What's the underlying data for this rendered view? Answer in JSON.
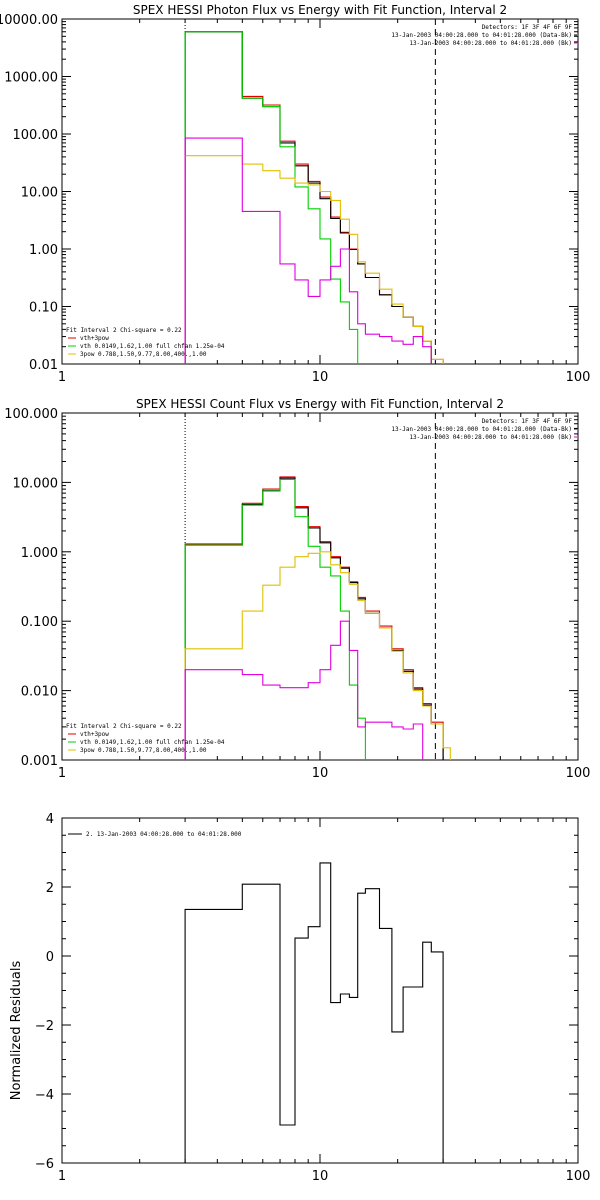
{
  "chart_data": [
    {
      "type": "line",
      "title": "SPEX HESSI Photon Flux vs Energy with Fit Function, Interval 2",
      "xlabel": "",
      "ylabel": "",
      "x_scale": "log",
      "y_scale": "log",
      "xlim": [
        1,
        100
      ],
      "ylim": [
        0.01,
        10000
      ],
      "x_ticks": [
        "1",
        "10",
        "100"
      ],
      "y_ticks": [
        "0.01",
        "0.10",
        "1.00",
        "10.00",
        "100.00",
        "1000.00",
        "10000.00"
      ],
      "top_right_text": [
        "Detectors: 1F 3F 4F 6F 9F",
        "13-Jan-2003 04:00:28.000 to 04:01:28.000 (Data-Bk)",
        "13-Jan-2003 04:00:28.000 to 04:01:28.000 (Bk)"
      ],
      "fit_text": [
        "Fit Interval  2    Chi-square = 0.22",
        "vth+3pow",
        "vth 0.0149,1.62,1.00  full chfan 1.25e-04",
        "3pow 0.788,1.50,9.77,8.00,400.,1.00"
      ],
      "bin_edges": [
        3,
        4,
        5,
        6,
        7,
        8,
        9,
        10,
        11,
        12,
        13,
        14,
        15,
        17,
        19,
        21,
        23,
        25,
        27,
        30,
        32
      ],
      "series": [
        {
          "name": "vth+3pow",
          "color": "#e00000",
          "values": [
            6000,
            6000,
            450,
            320,
            75,
            30,
            15,
            8,
            3.6,
            1.95,
            1.0,
            0.55,
            0.32,
            0.16,
            0.1,
            0.065,
            0.045,
            0.025,
            0.012
          ]
        },
        {
          "name": "",
          "color": "#000000",
          "values": [
            6000,
            6000,
            420,
            300,
            70,
            28,
            14,
            7.5,
            3.4,
            1.9,
            0.98,
            0.55,
            0.32,
            0.16,
            0.1,
            0.065,
            0.045,
            0.025
          ]
        },
        {
          "name": "vth 0.0149,1.62,1.00  full chfan 1.25e-04",
          "color": "#00d000",
          "values": [
            6000,
            6000,
            420,
            300,
            60,
            12,
            5,
            1.5,
            0.3,
            0.12,
            0.04,
            0.009,
            0.003
          ]
        },
        {
          "name": "3pow 0.788,1.50,9.77,8.00,400.,1.00",
          "color": "#e0c000",
          "values": [
            42,
            42,
            30,
            23,
            17,
            14,
            13,
            10,
            7,
            3.3,
            1.8,
            0.6,
            0.38,
            0.2,
            0.11,
            0.065,
            0.045,
            0.025,
            0.012
          ]
        },
        {
          "name": "",
          "color": "#e000e0",
          "values": [
            85,
            85,
            4.5,
            4.5,
            0.55,
            0.29,
            0.15,
            0.29,
            0.5,
            1.0,
            0.18,
            0.05,
            0.033,
            0.03,
            0.025,
            0.022,
            0.03,
            0.02
          ]
        }
      ],
      "vertical_lines": [
        {
          "x": 3,
          "style": "dotted"
        },
        {
          "x": 28,
          "style": "dashed"
        }
      ]
    },
    {
      "type": "line",
      "title": "SPEX HESSI Count Flux vs Energy with Fit Function, Interval 2",
      "xlabel": "",
      "ylabel": "",
      "x_scale": "log",
      "y_scale": "log",
      "xlim": [
        1,
        100
      ],
      "ylim": [
        0.001,
        100
      ],
      "x_ticks": [
        "1",
        "10",
        "100"
      ],
      "y_ticks": [
        "0.001",
        "0.010",
        "0.100",
        "1.000",
        "10.000",
        "100.000"
      ],
      "top_right_text": [
        "Detectors: 1F 3F 4F 6F 9F",
        "13-Jan-2003 04:00:28.000 to 04:01:28.000 (Data-Bk)",
        "13-Jan-2003 04:00:28.000 to 04:01:28.000 (Bk)"
      ],
      "fit_text": [
        "Fit Interval  2    Chi-square = 0.22",
        "vth+3pow",
        "vth 0.0149,1.62,1.00  full chfan 1.25e-04",
        "3pow 0.788,1.50,9.77,8.00,400.,1.00"
      ],
      "bin_edges": [
        3,
        4,
        5,
        6,
        7,
        8,
        9,
        10,
        11,
        12,
        13,
        14,
        15,
        17,
        19,
        21,
        23,
        25,
        27,
        30,
        32
      ],
      "series": [
        {
          "name": "vth+3pow",
          "color": "#e00000",
          "values": [
            1.3,
            1.3,
            5.0,
            8.0,
            12.0,
            4.5,
            2.3,
            1.4,
            0.85,
            0.6,
            0.37,
            0.22,
            0.14,
            0.085,
            0.04,
            0.02,
            0.011,
            0.0065,
            0.0035
          ]
        },
        {
          "name": "",
          "color": "#000000",
          "values": [
            1.25,
            1.25,
            4.8,
            7.6,
            11.5,
            4.3,
            2.2,
            1.35,
            0.82,
            0.58,
            0.36,
            0.21,
            0.13,
            0.08,
            0.038,
            0.019,
            0.0105,
            0.0062,
            0.0033
          ]
        },
        {
          "name": "vth 0.0149,1.62,1.00  full chfan 1.25e-04",
          "color": "#00d000",
          "values": [
            1.25,
            1.25,
            4.7,
            7.5,
            11.0,
            3.2,
            1.2,
            0.6,
            0.45,
            0.14,
            0.012,
            0.004,
            0.0005
          ]
        },
        {
          "name": "3pow 0.788,1.50,9.77,8.00,400.,1.00",
          "color": "#e0c000",
          "values": [
            0.04,
            0.04,
            0.14,
            0.33,
            0.6,
            0.85,
            0.95,
            1.0,
            0.65,
            0.5,
            0.34,
            0.2,
            0.13,
            0.08,
            0.037,
            0.018,
            0.01,
            0.006,
            0.0033,
            0.0015
          ]
        },
        {
          "name": "",
          "color": "#e000e0",
          "values": [
            0.02,
            0.02,
            0.017,
            0.012,
            0.011,
            0.011,
            0.013,
            0.02,
            0.045,
            0.1,
            0.038,
            0.003,
            0.0035,
            0.0035,
            0.003,
            0.0028,
            0.0033
          ]
        }
      ],
      "vertical_lines": [
        {
          "x": 3,
          "style": "dotted"
        },
        {
          "x": 28,
          "style": "dashed"
        }
      ]
    },
    {
      "type": "line",
      "title": "",
      "xlabel": "",
      "ylabel": "Normalized Residuals",
      "x_scale": "log",
      "y_scale": "linear",
      "xlim": [
        1,
        100
      ],
      "ylim": [
        -6,
        4
      ],
      "x_ticks": [
        "1",
        "10",
        "100"
      ],
      "y_ticks": [
        "4",
        "2",
        "0",
        "−2",
        "−4",
        "−6"
      ],
      "legend_text": "2. 13-Jan-2003 04:00:28.000 to 04:01:28.000",
      "bin_edges": [
        3,
        4,
        5,
        6,
        7,
        8,
        9,
        10,
        11,
        12,
        13,
        14,
        15,
        17,
        19,
        21,
        23,
        25,
        27,
        30,
        32
      ],
      "series": [
        {
          "name": "2. 13-Jan-2003 04:00:28.000 to 04:01:28.000",
          "color": "#000000",
          "values": [
            1.35,
            1.35,
            2.08,
            2.08,
            -4.9,
            0.52,
            0.85,
            2.7,
            -1.35,
            -1.1,
            -1.2,
            1.82,
            1.95,
            0.8,
            -2.2,
            -0.9,
            -0.9,
            0.4,
            0.12
          ]
        }
      ]
    }
  ]
}
